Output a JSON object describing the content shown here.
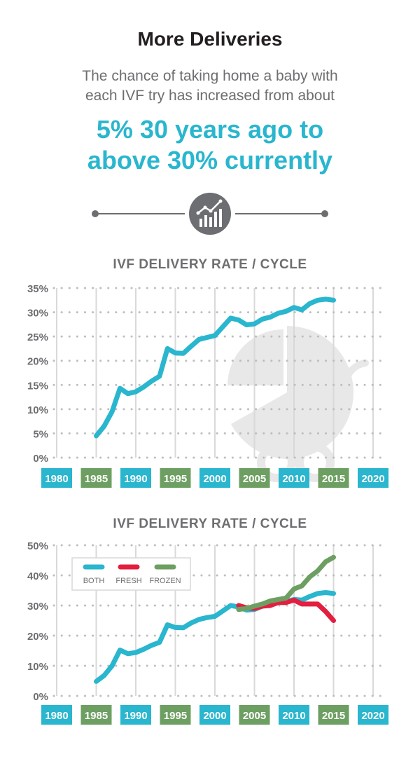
{
  "header": {
    "title": "More Deliveries",
    "subtitle_line1": "The chance of taking home a baby with",
    "subtitle_line2": "each IVF try has increased from about",
    "highlight_line1": "5% 30 years ago to",
    "highlight_line2": "above 30% currently"
  },
  "colors": {
    "accent": "#29b6ce",
    "green": "#6e9f62",
    "red": "#e31f3f",
    "gray": "#6d6e71"
  },
  "icon": "line-chart-icon",
  "chart_data": [
    {
      "type": "line",
      "title": "IVF DELIVERY RATE / CYCLE",
      "xlim": [
        1980,
        2020
      ],
      "ylim": [
        0,
        35
      ],
      "x_ticks": [
        "1980",
        "1985",
        "1990",
        "1995",
        "2000",
        "2005",
        "2010",
        "2015",
        "2020"
      ],
      "x_tick_colors": [
        "#29b6ce",
        "#6e9f62",
        "#29b6ce",
        "#6e9f62",
        "#29b6ce",
        "#6e9f62",
        "#29b6ce",
        "#6e9f62",
        "#29b6ce"
      ],
      "y_ticks": [
        "0%",
        "5%",
        "10%",
        "15%",
        "20%",
        "25%",
        "30%",
        "35%"
      ],
      "grid": true,
      "series": [
        {
          "color": "#29b6ce",
          "x": [
            1985,
            1986,
            1987,
            1988,
            1989,
            1990,
            1991,
            1992,
            1993,
            1994,
            1995,
            1996,
            1997,
            1998,
            1999,
            2000,
            2001,
            2002,
            2003,
            2004,
            2005,
            2006,
            2007,
            2008,
            2009,
            2010,
            2011,
            2012,
            2013,
            2014,
            2015
          ],
          "y": [
            4.5,
            6.5,
            9.5,
            14.3,
            13.2,
            13.6,
            14.6,
            15.8,
            16.8,
            22.5,
            21.6,
            21.5,
            23.0,
            24.4,
            24.8,
            25.2,
            27.0,
            28.8,
            28.4,
            27.4,
            27.6,
            28.6,
            29.0,
            29.8,
            30.2,
            31.0,
            30.5,
            31.8,
            32.5,
            32.7,
            32.5
          ]
        }
      ]
    },
    {
      "type": "line",
      "title": "IVF DELIVERY RATE / CYCLE",
      "xlim": [
        1980,
        2020
      ],
      "ylim": [
        0,
        50
      ],
      "x_ticks": [
        "1980",
        "1985",
        "1990",
        "1995",
        "2000",
        "2005",
        "2010",
        "2015",
        "2020"
      ],
      "x_tick_colors": [
        "#29b6ce",
        "#6e9f62",
        "#29b6ce",
        "#6e9f62",
        "#29b6ce",
        "#6e9f62",
        "#29b6ce",
        "#6e9f62",
        "#29b6ce"
      ],
      "y_ticks": [
        "0%",
        "10%",
        "20%",
        "30%",
        "40%",
        "50%"
      ],
      "grid": true,
      "legend_position": "top-left",
      "series": [
        {
          "name": "BOTH",
          "color": "#29b6ce",
          "x": [
            1985,
            1986,
            1987,
            1988,
            1989,
            1990,
            1991,
            1992,
            1993,
            1994,
            1995,
            1996,
            1997,
            1998,
            1999,
            2000,
            2001,
            2002,
            2003,
            2004,
            2005,
            2006,
            2007,
            2008,
            2009,
            2010,
            2011,
            2012,
            2013,
            2014,
            2015
          ],
          "y": [
            4.8,
            6.8,
            10.0,
            15.2,
            14.0,
            14.4,
            15.5,
            16.8,
            17.8,
            23.6,
            22.7,
            22.6,
            24.2,
            25.4,
            26.0,
            26.4,
            28.2,
            30.0,
            29.5,
            28.5,
            28.7,
            29.8,
            30.3,
            31.0,
            31.4,
            32.0,
            31.8,
            33.0,
            34.0,
            34.3,
            34.0
          ]
        },
        {
          "name": "FRESH",
          "color": "#e31f3f",
          "x": [
            2003,
            2004,
            2005,
            2006,
            2007,
            2008,
            2009,
            2010,
            2011,
            2012,
            2013,
            2014,
            2015
          ],
          "y": [
            30.0,
            29.2,
            29.0,
            29.8,
            30.0,
            31.0,
            31.0,
            31.8,
            30.5,
            30.5,
            30.5,
            28.0,
            25.0
          ]
        },
        {
          "name": "FROZEN",
          "color": "#6e9f62",
          "x": [
            2003,
            2004,
            2005,
            2006,
            2007,
            2008,
            2009,
            2010,
            2011,
            2012,
            2013,
            2014,
            2015
          ],
          "y": [
            28.7,
            29.0,
            29.8,
            30.5,
            31.5,
            32.0,
            32.5,
            35.5,
            36.5,
            39.5,
            41.5,
            44.5,
            46.0
          ]
        }
      ]
    }
  ]
}
